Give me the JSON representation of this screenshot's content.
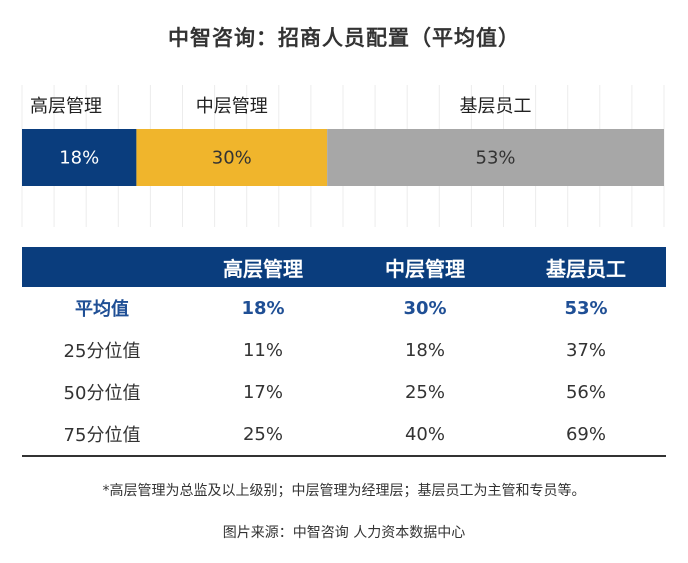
{
  "title": "中智咨询：招商人员配置（平均值）",
  "chart_data": {
    "type": "bar",
    "orientation": "horizontal-stacked-100",
    "categories": [
      "高层管理",
      "中层管理",
      "基层员工"
    ],
    "values": [
      18,
      30,
      53
    ],
    "value_labels": [
      "18%",
      "30%",
      "53%"
    ],
    "colors": [
      "#0a3d7d",
      "#f0b52c",
      "#a7a7a7"
    ],
    "label_colors": [
      "#ffffff",
      "#333333",
      "#333333"
    ],
    "grid": true
  },
  "table": {
    "header": [
      "",
      "高层管理",
      "中层管理",
      "基层员工"
    ],
    "rows": [
      [
        "平均值",
        "18%",
        "30%",
        "53%"
      ],
      [
        "25分位值",
        "11%",
        "18%",
        "37%"
      ],
      [
        "50分位值",
        "17%",
        "25%",
        "56%"
      ],
      [
        "75分位值",
        "25%",
        "40%",
        "69%"
      ]
    ]
  },
  "footnote": "*高层管理为总监及以上级别；中层管理为经理层；基层员工为主管和专员等。",
  "source": "图片来源：中智咨询 人力资本数据中心"
}
